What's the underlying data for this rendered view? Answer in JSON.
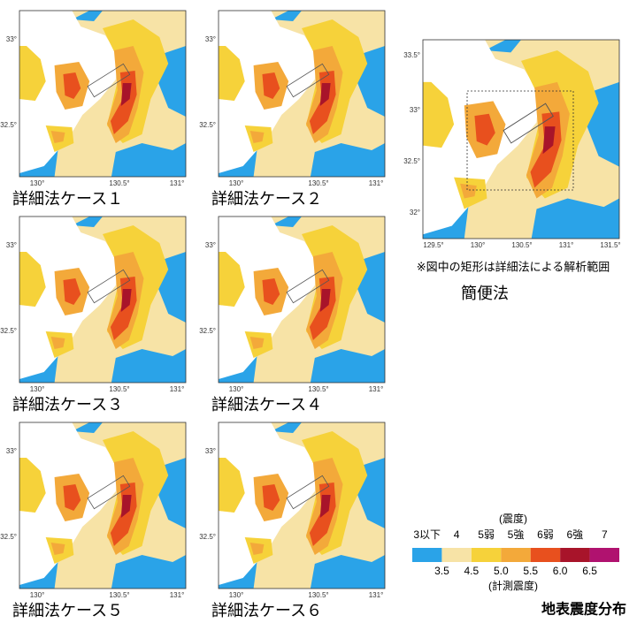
{
  "panels": [
    {
      "caption": "詳細法ケース１"
    },
    {
      "caption": "詳細法ケース２"
    },
    {
      "caption": "詳細法ケース３"
    },
    {
      "caption": "詳細法ケース４"
    },
    {
      "caption": "詳細法ケース５"
    },
    {
      "caption": "詳細法ケース６"
    }
  ],
  "axis_labels": {
    "y": [
      "33°",
      "32.5°"
    ],
    "x": [
      "130°",
      "130.5°",
      "131°"
    ]
  },
  "overview": {
    "title": "簡便法",
    "note": "※図中の矩形は詳細法による解析範囲",
    "y": [
      "33.5°",
      "33°",
      "32.5°",
      "32°"
    ],
    "x": [
      "129.5°",
      "130°",
      "130.5°",
      "131°",
      "131.5°"
    ]
  },
  "legend": {
    "caption_top": "(震度)",
    "classes": [
      "3以下",
      "4",
      "5弱",
      "5強",
      "6弱",
      "6強",
      "7"
    ],
    "boundaries": [
      "3.5",
      "4.5",
      "5.0",
      "5.5",
      "6.0",
      "6.5"
    ],
    "caption_bottom": "(計測震度)",
    "colors": [
      "#2aa3e8",
      "#f7e3a6",
      "#f6d23a",
      "#f3a93a",
      "#e8501e",
      "#a8142a",
      "#b0126f"
    ]
  },
  "title": "地表震度分布"
}
